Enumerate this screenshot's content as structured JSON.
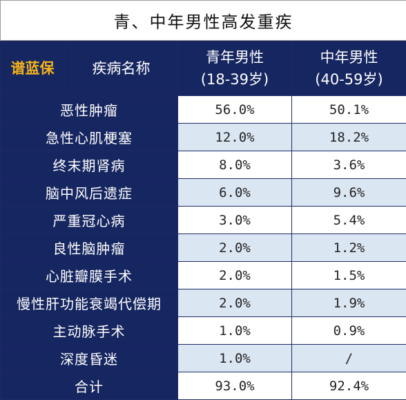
{
  "title": "青、中年男性高发重疾",
  "header": {
    "brand": "谱蓝保",
    "disease_col": "疾病名称",
    "young_label": "青年男性",
    "young_age": "(18-39岁)",
    "middle_label": "中年男性",
    "middle_age": "(40-59岁)"
  },
  "rows": [
    {
      "name": "恶性肿瘤",
      "young": "56.0%",
      "middle": "50.1%"
    },
    {
      "name": "急性心肌梗塞",
      "young": "12.0%",
      "middle": "18.2%"
    },
    {
      "name": "终末期肾病",
      "young": "8.0%",
      "middle": "3.6%"
    },
    {
      "name": "脑中风后遗症",
      "young": "6.0%",
      "middle": "9.6%"
    },
    {
      "name": "严重冠心病",
      "young": "3.0%",
      "middle": "5.4%"
    },
    {
      "name": "良性脑肿瘤",
      "young": "2.0%",
      "middle": "1.2%"
    },
    {
      "name": "心脏瓣膜手术",
      "young": "2.0%",
      "middle": "1.5%"
    },
    {
      "name": "慢性肝功能衰竭代偿期",
      "young": "2.0%",
      "middle": "1.9%"
    },
    {
      "name": "主动脉手术",
      "young": "1.0%",
      "middle": "0.9%"
    },
    {
      "name": "深度昏迷",
      "young": "1.0%",
      "middle": "/"
    }
  ],
  "total": {
    "name": "合计",
    "young": "93.0%",
    "middle": "92.4%"
  },
  "colors": {
    "header_bg": "#162660",
    "brand_text": "#f3b21a",
    "stripe": "#dbe6f3"
  }
}
